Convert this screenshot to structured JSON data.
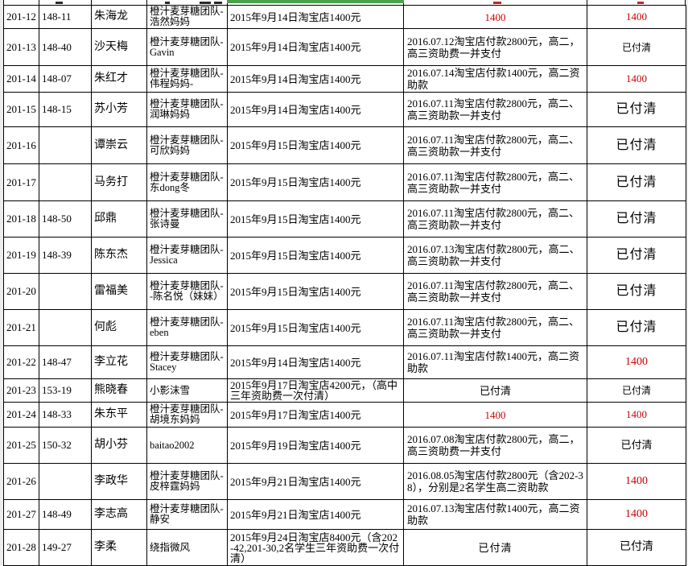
{
  "colors": {
    "accent_red": "#cc0000",
    "selection_green": "#4aa34a",
    "grid_black": "#000000",
    "page_bg": "#ececec",
    "cell_bg": "#ffffff"
  },
  "table": {
    "rows": [
      {
        "id": "201-12",
        "code": "148-11",
        "name": "朱海龙",
        "account": "橙汁麦芽糖团队-浩然妈妈",
        "payment": "2015年9月14日淘宝店1400元",
        "detail": "1400",
        "detail_variant": "red",
        "status": "1400",
        "status_variant": "red"
      },
      {
        "id": "201-13",
        "code": "148-40",
        "name": "沙天梅",
        "account": "橙汁麦芽糖团队-Gavin",
        "payment": "2015年9月14日淘宝店1400元",
        "detail": "2016.07.12淘宝店付款2800元，高二，高三资助费一并支付",
        "detail_variant": "text",
        "status": "已付清",
        "status_variant": "paid-sm"
      },
      {
        "id": "201-14",
        "code": "148-07",
        "name": "朱红才",
        "account": "橙汁麦芽糖团队-伟程妈妈-",
        "payment": "2015年9月14日淘宝店1400元",
        "detail": "2016.07.14淘宝店付款1400元，高二资助款",
        "detail_variant": "text",
        "status": "1400",
        "status_variant": "red"
      },
      {
        "id": "201-15",
        "code": "148-15",
        "name": "苏小芳",
        "account": "橙汁麦芽糖团队-润琳妈妈",
        "payment": "2015年9月14日淘宝店1400元",
        "detail": "2016.07.11淘宝店付款2800元，高二、高三资助款一并支付",
        "detail_variant": "text",
        "status": "已付清",
        "status_variant": "paid-lg"
      },
      {
        "id": "201-16",
        "code": "",
        "name": "谭崇云",
        "account": "橙汁麦芽糖团队-可欣妈妈",
        "payment": "2015年9月15日淘宝店1400元",
        "detail": "2016.07.11淘宝店付款2800元，高二、高三资助款一并支付",
        "detail_variant": "text",
        "status": "已付清",
        "status_variant": "paid-lg"
      },
      {
        "id": "201-17",
        "code": "",
        "name": "马务打",
        "account": "橙汁麦芽糖团队-东dong冬",
        "payment": "2015年9月15日淘宝店1400元",
        "detail": "2016.07.11淘宝店付款2800元，高二、高三资助款一并支付",
        "detail_variant": "text",
        "status": "已付清",
        "status_variant": "paid-lg"
      },
      {
        "id": "201-18",
        "code": "148-50",
        "name": "邱鼎",
        "account": "橙汁麦芽糖团队-张诗曼",
        "payment": "2015年9月15日淘宝店1400元",
        "detail": "2016.07.11淘宝店付款2800元，高二、高三资助款一并支付",
        "detail_variant": "text",
        "status": "已付清",
        "status_variant": "paid-lg"
      },
      {
        "id": "201-19",
        "code": "148-39",
        "name": "陈东杰",
        "account": "橙汁麦芽糖团队-Jessica",
        "payment": "2015年9月15日淘宝店1400元",
        "detail": "2016.07.13淘宝店付款2800元，高二、高三资助款一并支付",
        "detail_variant": "text",
        "status": "已付清",
        "status_variant": "paid-lg"
      },
      {
        "id": "201-20",
        "code": "",
        "name": "雷福美",
        "account": "橙汁麦芽糖团队--陈名悦（妹妹）",
        "payment": "2015年9月15日淘宝店1400元",
        "detail": "2016.07.11淘宝店付款2800元，高二、高三资助款一并支付",
        "detail_variant": "text",
        "status": "已付清",
        "status_variant": "paid-lg"
      },
      {
        "id": "201-21",
        "code": "",
        "name": "何彪",
        "account": "橙汁麦芽糖团队-eben",
        "payment": "2015年9月15日淘宝店1400元",
        "detail": "2016.07.11淘宝店付款2800元，高二、高三资助款一并支付",
        "detail_variant": "text",
        "status": "已付清",
        "status_variant": "paid-lg"
      },
      {
        "id": "201-22",
        "code": "148-47",
        "name": "李立花",
        "account": "橙汁麦芽糖团队-Stacey",
        "payment": "2015年9月14日淘宝店1400元",
        "detail": "2016.07.11淘宝店付款1400元，高二资助款",
        "detail_variant": "text",
        "status": "1400",
        "status_variant": "red-lg"
      },
      {
        "id": "201-23",
        "code": "153-19",
        "name": "熊晓春",
        "account": "小影沫雪",
        "payment": "2015年9月17日淘宝店4200元，（高中三年资助费一次付清）",
        "detail": "已付清",
        "detail_variant": "paid-sm",
        "status": "已付清",
        "status_variant": "paid-sm"
      },
      {
        "id": "201-24",
        "code": "148-33",
        "name": "朱东平",
        "account": "橙汁麦芽糖团队-胡境东妈妈",
        "payment": "2015年9月17日淘宝店1400元",
        "detail": "1400",
        "detail_variant": "red",
        "status": "1400",
        "status_variant": "red"
      },
      {
        "id": "201-25",
        "code": "150-32",
        "name": "胡小芬",
        "account": "baitao2002",
        "payment": "2015年9月19日淘宝店1400元",
        "detail": "2016.07.08淘宝店付款2800元，高二，高三资助费一并支付",
        "detail_variant": "text",
        "status": "已付清",
        "status_variant": "paid"
      },
      {
        "id": "201-26",
        "code": "",
        "name": "李政华",
        "account": "橙汁麦芽糖团队-皮梓霆妈妈",
        "payment": "2015年9月21日淘宝店1400元",
        "detail": "2016.08.05淘宝店付款2800元（含202-38），分别是2名学生高二资助款",
        "detail_variant": "text",
        "status": "1400",
        "status_variant": "red-lg"
      },
      {
        "id": "201-27",
        "code": "148-49",
        "name": "李志高",
        "account": "橙汁麦芽糖团队-静安",
        "payment": "2015年9月21日淘宝店1400元",
        "detail": "2016.07.13淘宝店付款1400元，高二资助款",
        "detail_variant": "text",
        "status": "1400",
        "status_variant": "red-lg"
      },
      {
        "id": "201-28",
        "code": "149-27",
        "name": "李柔",
        "account": "绕指微风",
        "payment": "2015年9月24日淘宝店8400元（含202-42,201-30,2名学生三年资助费一次付清）",
        "detail": "已付清",
        "detail_variant": "paid-lg",
        "status": "已付清",
        "status_variant": "paid-md"
      }
    ]
  }
}
